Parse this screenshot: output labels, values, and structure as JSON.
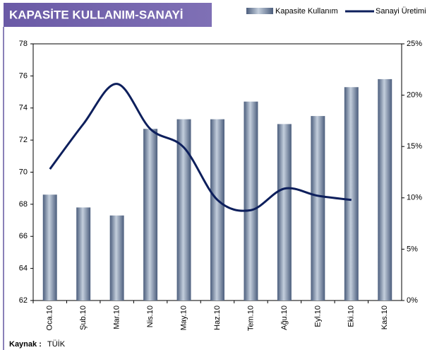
{
  "chart_data": {
    "type": "bar_line",
    "title": "KAPASİTE KULLANIM-SANAYİ",
    "categories": [
      "Oca.10",
      "Şub.10",
      "Mar.10",
      "Nis.10",
      "May.10",
      "Haz.10",
      "Tem.10",
      "Ağu.10",
      "Eyl.10",
      "Eki.10",
      "Kas.10"
    ],
    "series": [
      {
        "name": "Kapasite Kullanım",
        "type": "bar",
        "color": "#6f83a0",
        "values": [
          68.6,
          67.8,
          67.3,
          72.7,
          73.3,
          73.3,
          74.4,
          73.0,
          73.5,
          75.3,
          75.8
        ]
      },
      {
        "name": "Sanayi Üretimi",
        "type": "line",
        "axis": "y2",
        "color": "#0d1f5c",
        "values": [
          12.8,
          17.2,
          21.1,
          16.7,
          14.9,
          9.8,
          8.8,
          10.9,
          10.2,
          9.8,
          null
        ]
      }
    ],
    "ylim": [
      62,
      78
    ],
    "yticks": [
      62,
      64,
      66,
      68,
      70,
      72,
      74,
      76,
      78
    ],
    "y2lim": [
      0,
      25
    ],
    "y2ticks": [
      {
        "value": 0,
        "label": "0%"
      },
      {
        "value": 5,
        "label": "5%"
      },
      {
        "value": 10,
        "label": "10%"
      },
      {
        "value": 15,
        "label": "15%"
      },
      {
        "value": 20,
        "label": "20%"
      },
      {
        "value": 25,
        "label": "25%"
      }
    ],
    "grid": false,
    "source_label": "Kaynak :",
    "source": "TÜİK"
  }
}
